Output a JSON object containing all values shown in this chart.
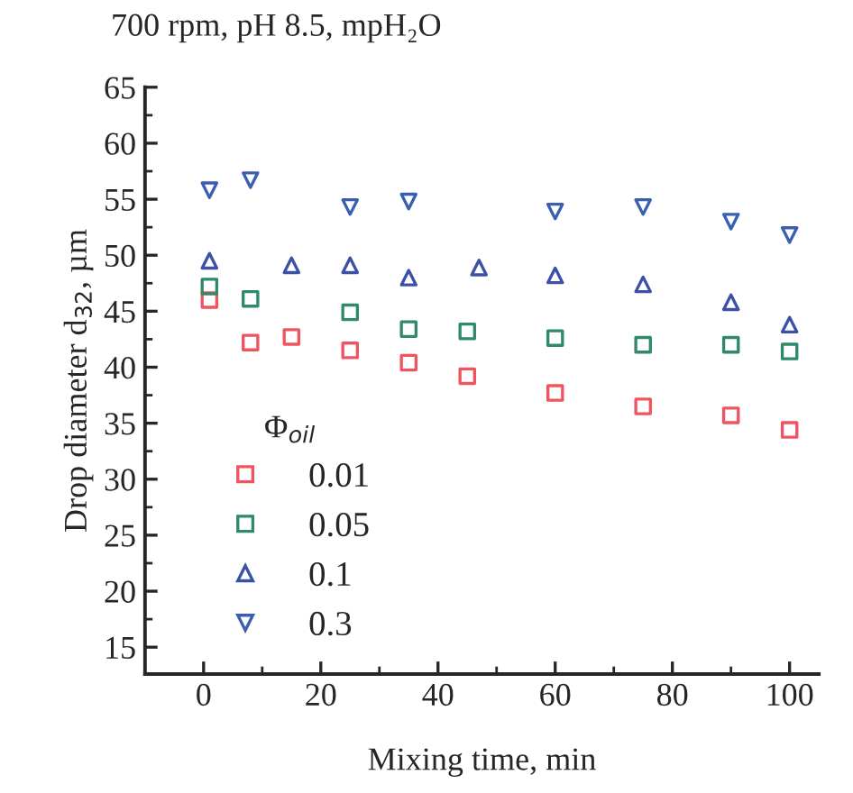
{
  "chart_data": {
    "type": "scatter",
    "title": "700 rpm, pH 8.5, mpH₂O",
    "xlabel": "Mixing time, min",
    "ylabel": "Drop diameter d$_{32}$, µm",
    "legend_title": "Φ$_{oil}$",
    "legend": "bottom left",
    "grid": false,
    "xlim": [
      -10,
      105
    ],
    "xticks": [
      0,
      20,
      40,
      60,
      80,
      100
    ],
    "ylim": [
      12.6,
      65
    ],
    "yticks": [
      15,
      20,
      25,
      30,
      35,
      40,
      45,
      50,
      55,
      60,
      65
    ],
    "series": [
      {
        "name": "0.01",
        "color": "#ee5560",
        "marker": "square",
        "x": [
          1,
          8,
          15,
          25,
          35,
          45,
          60,
          75,
          90,
          100
        ],
        "values": [
          46.0,
          42.2,
          42.7,
          41.5,
          40.4,
          39.2,
          37.7,
          36.5,
          35.7,
          34.4
        ]
      },
      {
        "name": "0.05",
        "color": "#2f8a68",
        "marker": "square",
        "x": [
          1,
          8,
          25,
          35,
          45,
          60,
          75,
          90,
          100
        ],
        "values": [
          47.2,
          46.1,
          44.9,
          43.4,
          43.2,
          42.6,
          42.0,
          42.0,
          41.4
        ]
      },
      {
        "name": "0.1",
        "color": "#3b50a6",
        "marker": "triangle",
        "x": [
          1,
          15,
          25,
          35,
          47,
          60,
          75,
          90,
          100
        ],
        "values": [
          49.5,
          49.1,
          49.1,
          48.0,
          48.9,
          48.2,
          47.4,
          45.8,
          43.8
        ]
      },
      {
        "name": "0.3",
        "color": "#3b5fb0",
        "marker": "triangle_down",
        "x": [
          1,
          8,
          25,
          35,
          60,
          75,
          90,
          100
        ],
        "values": [
          55.8,
          56.7,
          54.3,
          54.8,
          53.9,
          54.3,
          53.0,
          51.8
        ]
      }
    ]
  }
}
